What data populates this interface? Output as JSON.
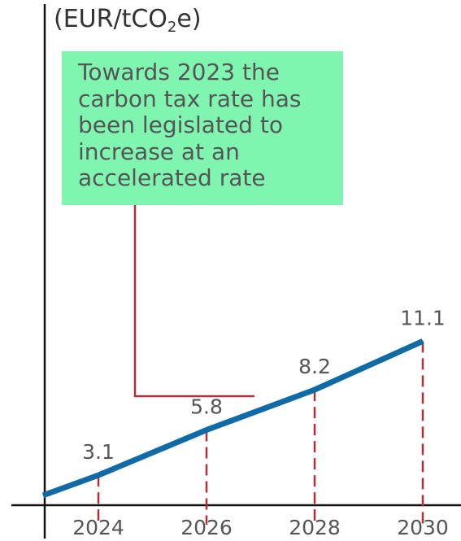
{
  "chart_data": {
    "type": "line",
    "unit_prefix": "(EUR/tCO",
    "unit_sub": "2",
    "unit_suffix": "e)",
    "x": [
      2024,
      2026,
      2028,
      2030
    ],
    "series": [
      {
        "values": [
          3.1,
          5.8,
          8.2,
          11.1
        ],
        "color": "#0f6aa6"
      }
    ],
    "data_labels": [
      "3.1",
      "5.8",
      "8.2",
      "11.1"
    ],
    "tick_labels": [
      "2024",
      "2026",
      "2028",
      "2030"
    ],
    "annotation": "Towards 2023 the carbon tax rate has been legislated to increase at an accelerated rate",
    "annotation_color": "#80f5b0",
    "dropline_color": "#b0303a",
    "axis_color": "#111111"
  }
}
